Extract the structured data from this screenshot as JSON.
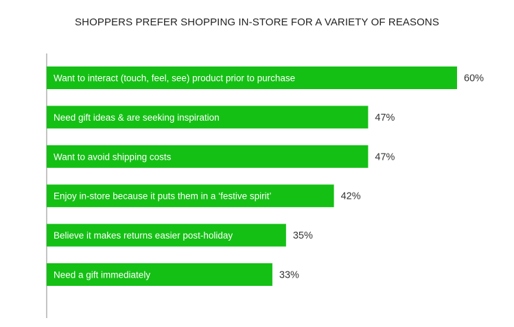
{
  "chart_data": {
    "type": "bar",
    "orientation": "horizontal",
    "title": "SHOPPERS PREFER SHOPPING IN-STORE FOR A VARIETY OF REASONS",
    "categories": [
      "Want to interact (touch, feel, see) product prior to purchase",
      "Need gift ideas & are seeking inspiration",
      "Want to avoid shipping costs",
      "Enjoy in-store because it puts them in a ‘festive spirit’",
      "Believe it makes returns easier post-holiday",
      "Need a gift immediately"
    ],
    "values": [
      60,
      47,
      47,
      42,
      35,
      33
    ],
    "value_labels": [
      "60%",
      "47%",
      "47%",
      "42%",
      "35%",
      "33%"
    ],
    "xlim": [
      0,
      60
    ],
    "grid": false,
    "legend": "none",
    "colors": {
      "bar": "#14c014",
      "axis": "#888888",
      "label": "#ffffff",
      "value": "#333333"
    }
  }
}
